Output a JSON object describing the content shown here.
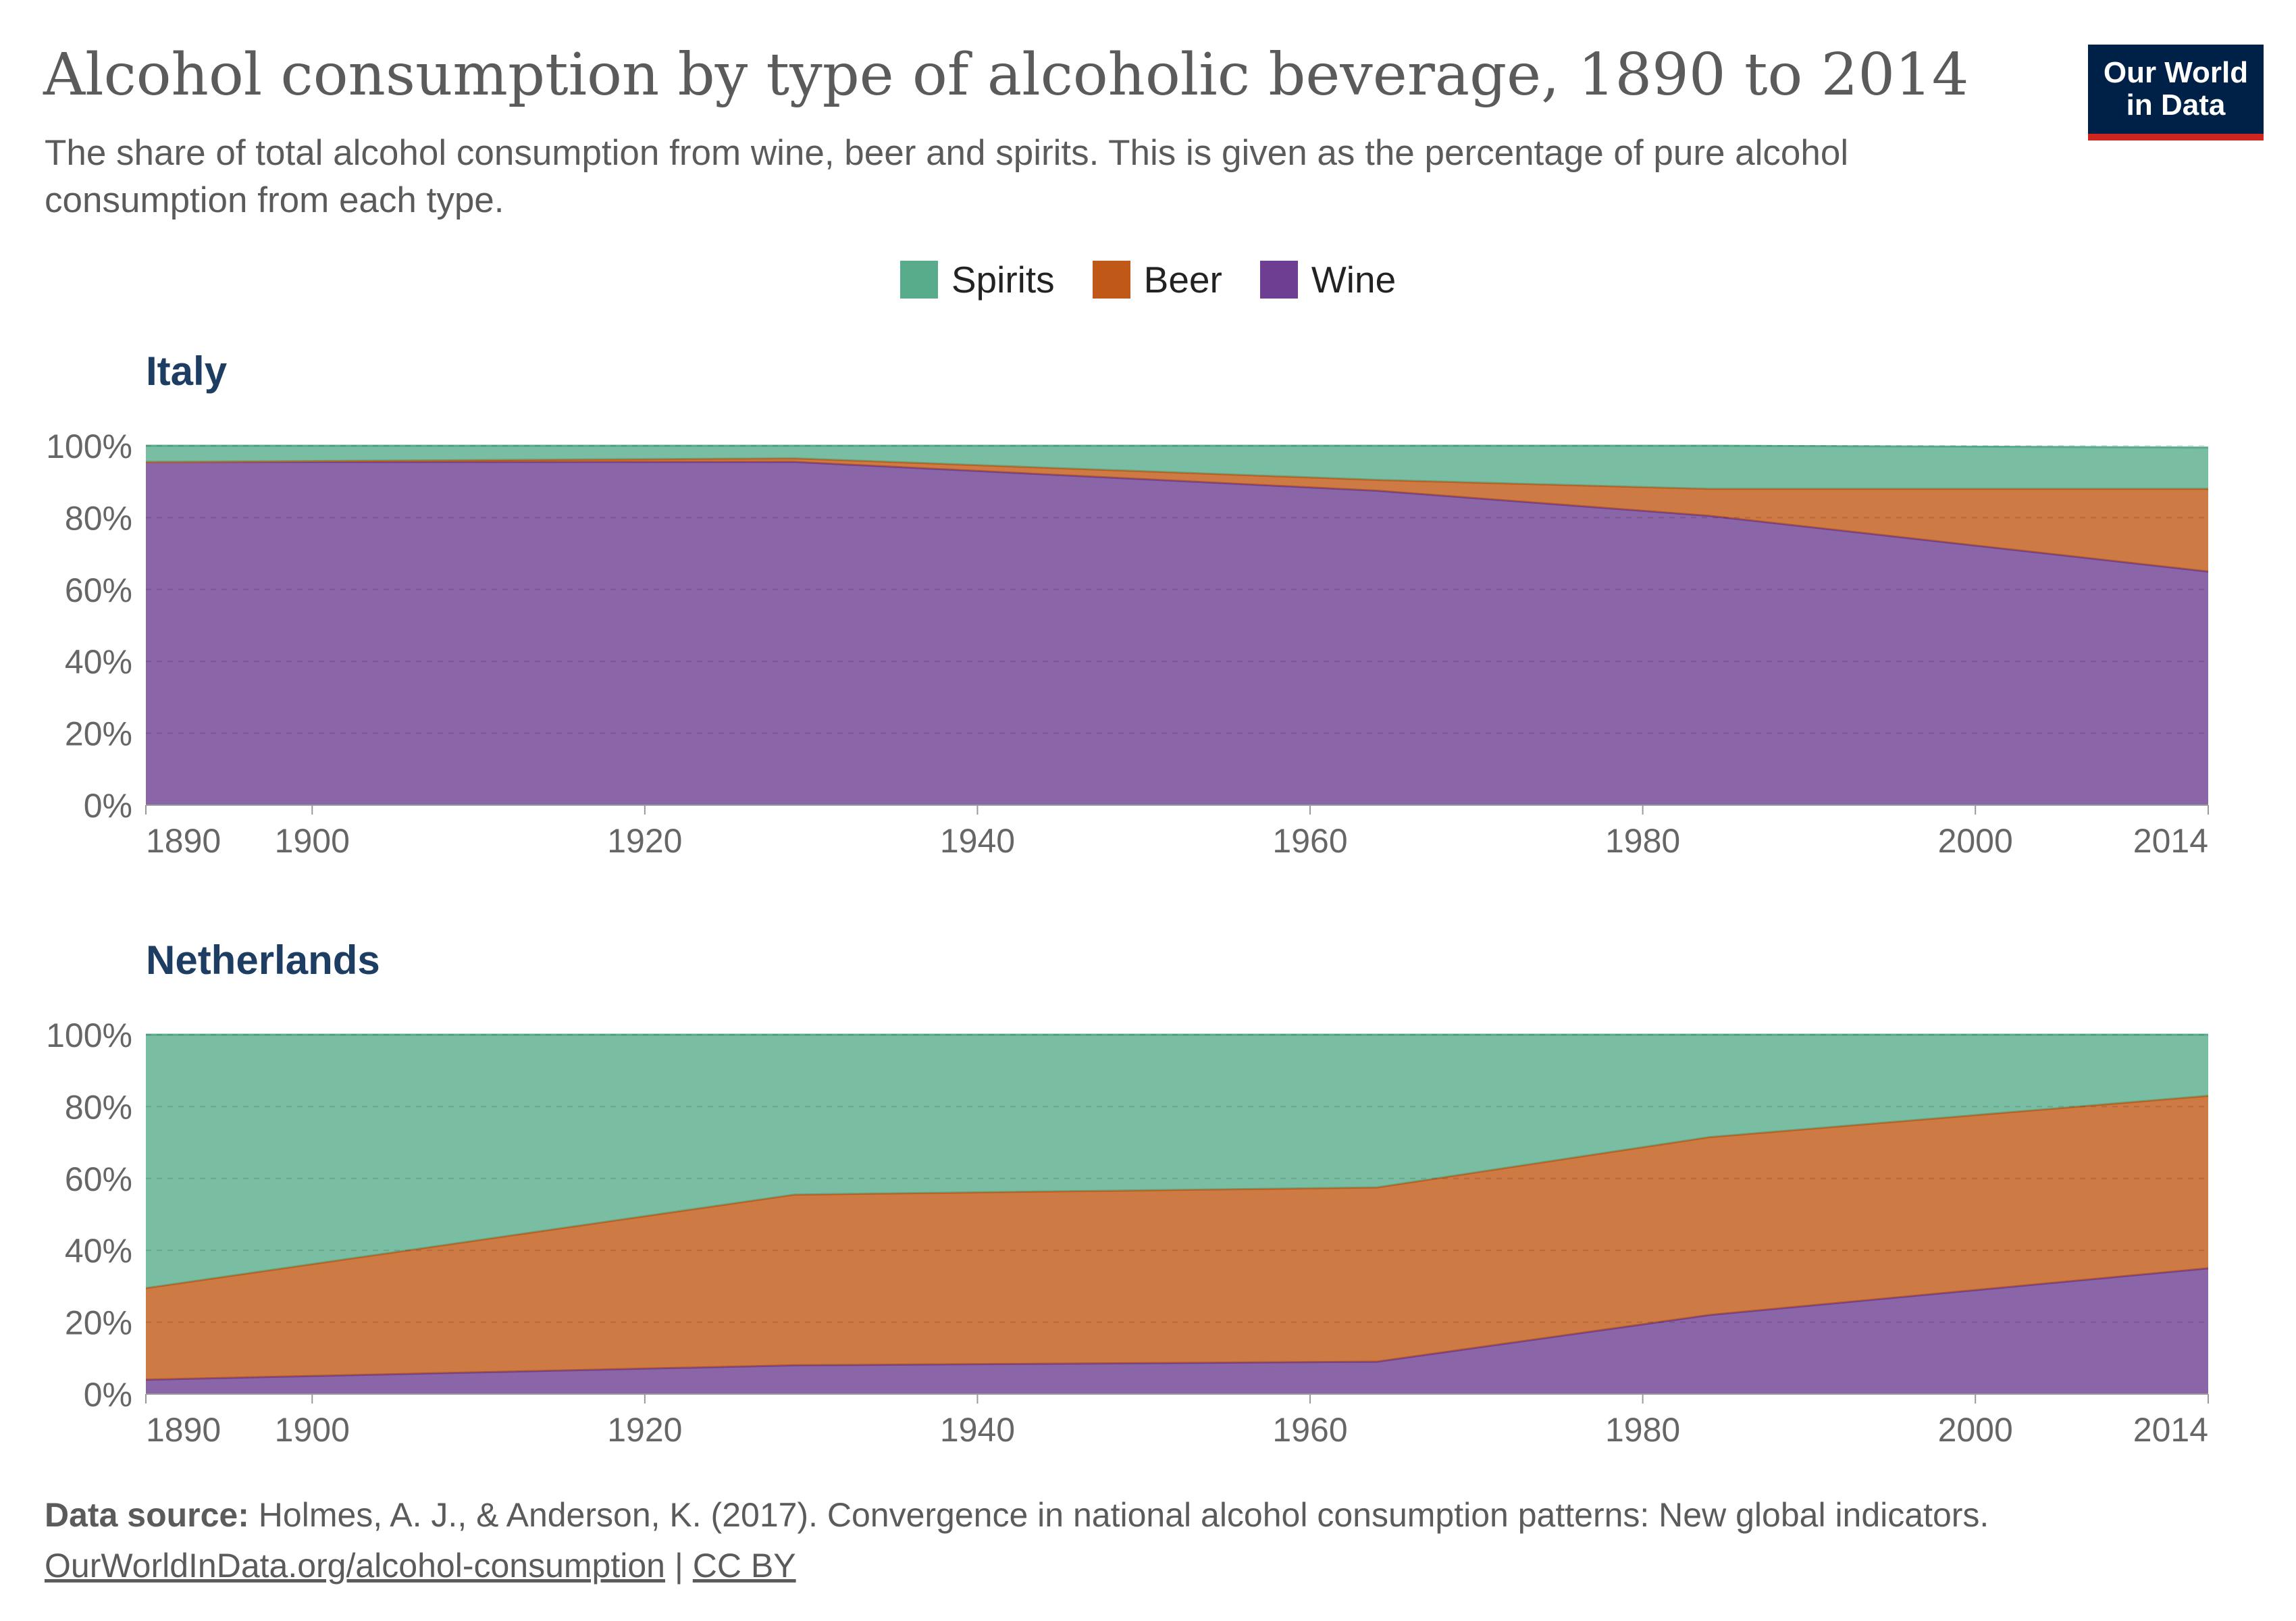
{
  "header": {
    "title": "Alcohol consumption by type of alcoholic beverage, 1890 to 2014",
    "subtitle": "The share of total alcohol consumption from wine, beer and spirits. This is given as the percentage of pure alcohol consumption from each type.",
    "logo_line1": "Our World",
    "logo_line2": "in Data"
  },
  "legend": [
    {
      "label": "Spirits",
      "color": "#58ac8c"
    },
    {
      "label": "Beer",
      "color": "#c05917"
    },
    {
      "label": "Wine",
      "color": "#6d3e91"
    }
  ],
  "footer": {
    "source_label": "Data source:",
    "source_text": "Holmes, A. J., & Anderson, K. (2017). Convergence in national alcohol consumption patterns: New global indicators.",
    "link_text": "OurWorldInData.org/alcohol-consumption",
    "separator": "|",
    "license": "CC BY"
  },
  "chart_data": [
    {
      "type": "area",
      "stacked": true,
      "title": "Italy",
      "xlabel": "",
      "ylabel": "",
      "xlim": [
        1890,
        2014
      ],
      "ylim": [
        0,
        100
      ],
      "x_ticks": [
        1890,
        1900,
        1920,
        1940,
        1960,
        1980,
        2000,
        2014
      ],
      "y_ticks": [
        0,
        20,
        40,
        60,
        80,
        100
      ],
      "y_tick_suffix": "%",
      "grid": true,
      "x": [
        1890,
        1929,
        1964,
        1984,
        2014
      ],
      "series": [
        {
          "name": "Wine",
          "color": "#6d3e91",
          "values": [
            95.5,
            95.5,
            87.5,
            80.5,
            65
          ]
        },
        {
          "name": "Beer",
          "color": "#c05917",
          "values": [
            0,
            1,
            3,
            7.5,
            23
          ]
        },
        {
          "name": "Spirits",
          "color": "#58ac8c",
          "values": [
            4.5,
            3.5,
            9.5,
            12,
            11.5
          ]
        }
      ]
    },
    {
      "type": "area",
      "stacked": true,
      "title": "Netherlands",
      "xlabel": "",
      "ylabel": "",
      "xlim": [
        1890,
        2014
      ],
      "ylim": [
        0,
        100
      ],
      "x_ticks": [
        1890,
        1900,
        1920,
        1940,
        1960,
        1980,
        2000,
        2014
      ],
      "y_ticks": [
        0,
        20,
        40,
        60,
        80,
        100
      ],
      "y_tick_suffix": "%",
      "grid": true,
      "x": [
        1890,
        1929,
        1964,
        1984,
        2014
      ],
      "series": [
        {
          "name": "Wine",
          "color": "#6d3e91",
          "values": [
            4,
            8,
            9,
            22,
            35
          ]
        },
        {
          "name": "Beer",
          "color": "#c05917",
          "values": [
            25.5,
            47.5,
            48.5,
            49.5,
            48
          ]
        },
        {
          "name": "Spirits",
          "color": "#58ac8c",
          "values": [
            70.5,
            44.5,
            42.5,
            28.5,
            17
          ]
        }
      ]
    }
  ]
}
